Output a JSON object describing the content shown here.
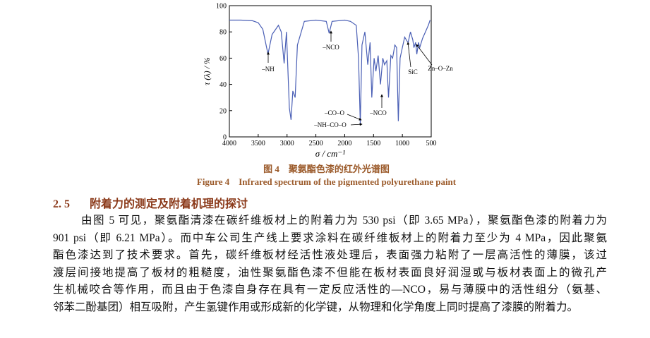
{
  "chart_data": {
    "type": "line",
    "xlabel": "σ / cm⁻¹",
    "ylabel": "τ (λ) / %",
    "xlim": [
      4000,
      500
    ],
    "xticks": [
      4000,
      3500,
      3000,
      2500,
      2000,
      1500,
      1000,
      500
    ],
    "ylim": [
      0,
      100
    ],
    "yticks": [
      0,
      20,
      40,
      60,
      80,
      100
    ],
    "series": [
      {
        "color": "#4a5fb5",
        "x": [
          4000,
          3800,
          3600,
          3500,
          3420,
          3330,
          3260,
          3150,
          3100,
          3050,
          3010,
          2960,
          2930,
          2900,
          2860,
          2820,
          2700,
          2500,
          2320,
          2270,
          2220,
          2000,
          1900,
          1800,
          1760,
          1730,
          1700,
          1650,
          1600,
          1560,
          1530,
          1490,
          1460,
          1420,
          1380,
          1340,
          1310,
          1270,
          1240,
          1200,
          1170,
          1130,
          1100,
          1070,
          1040,
          1000,
          960,
          920,
          900,
          860,
          820,
          800,
          770,
          750,
          720,
          700,
          650,
          600,
          550,
          520
        ],
        "values": [
          89,
          89,
          88.5,
          87,
          82,
          63,
          78,
          85,
          80,
          56,
          80,
          22,
          13,
          35,
          30,
          70,
          88,
          89,
          88,
          79,
          88,
          89,
          88,
          85,
          60,
          10,
          70,
          80,
          55,
          72,
          30,
          60,
          50,
          62,
          40,
          60,
          55,
          58,
          30,
          62,
          60,
          70,
          68,
          12,
          60,
          68,
          76,
          73,
          72,
          80,
          74,
          68,
          72,
          63,
          72,
          68,
          75,
          80,
          85,
          89
        ]
      }
    ],
    "annotations": [
      "–NH",
      "–NCO",
      "–CO–O",
      "–NH–CO–O",
      "–NCO",
      "SiC",
      "Zn–O–Zn"
    ]
  },
  "figure": {
    "caption_cn": "图 4　聚氨酯色漆的红外光谱图",
    "caption_en": "Figure 4　Infrared spectrum of the pigmented polyurethane paint"
  },
  "section": {
    "number": "2. 5",
    "title": "附着力的测定及附着机理的探讨"
  },
  "paragraph": [
    "由图 5 可见，聚氨酯清漆在碳纤维板材上的附着力为 530 psi（即 3.65 MPa），聚氨酯色漆的附着力为",
    "901 psi（即 6.21 MPa）。而中车公司生产线上要求涂料在碳纤维板材上的附着力至少为 4 MPa，因此聚氨",
    "酯色漆达到了技术要求。首先，碳纤维板材经活性液处理后，表面强力粘附了一层高活性的薄膜，该过",
    "渡层间接地提高了板材的粗糙度，油性聚氨酯色漆不但能在板材表面良好润湿或与板材表面上的微孔产",
    "生机械咬合等作用，而且由于色漆自身存在具有一定反应活性的—NCO，易与薄膜中的活性组分（氨基、",
    "邻苯二酚基团）相互吸附，产生氢键作用或形成新的化学键，从物理和化学角度上同时提高了漆膜的附着力。"
  ]
}
